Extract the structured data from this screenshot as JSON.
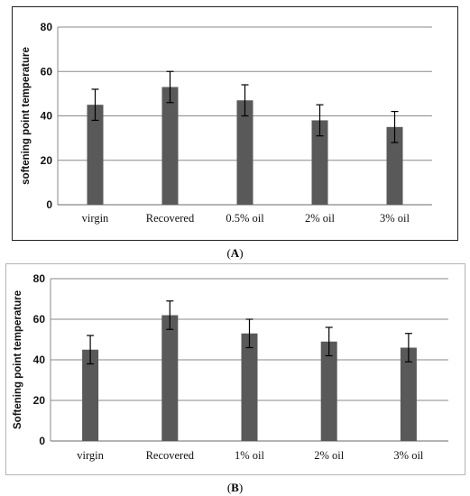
{
  "chart_data": [
    {
      "panel": "A",
      "type": "bar",
      "ylabel": "softening point temperature",
      "xlabel": "",
      "ylim": [
        0,
        80
      ],
      "yticks": [
        0,
        20,
        40,
        60,
        80
      ],
      "grid": true,
      "categories": [
        "virgin",
        "Recovered",
        "0.5% oil",
        "2% oil",
        "3% oil"
      ],
      "values": [
        45,
        53,
        47,
        38,
        35
      ],
      "error": [
        7,
        7,
        7,
        7,
        7
      ],
      "bar_color": "#595959",
      "caption": "(A)"
    },
    {
      "panel": "B",
      "type": "bar",
      "ylabel": "Softening point temperature",
      "xlabel": "",
      "ylim": [
        0,
        80
      ],
      "yticks": [
        0,
        20,
        40,
        60,
        80
      ],
      "grid": true,
      "categories": [
        "virgin",
        "Recovered",
        "1% oil",
        "2% oil",
        "3% oil"
      ],
      "values": [
        45,
        62,
        53,
        49,
        46
      ],
      "error": [
        7,
        7,
        7,
        7,
        7
      ],
      "bar_color": "#595959",
      "caption": "(B)"
    }
  ],
  "captions": {
    "a_open": "(",
    "a_letter": "A",
    "a_close": ")",
    "b_open": "(",
    "b_letter": "B",
    "b_close": ")"
  }
}
